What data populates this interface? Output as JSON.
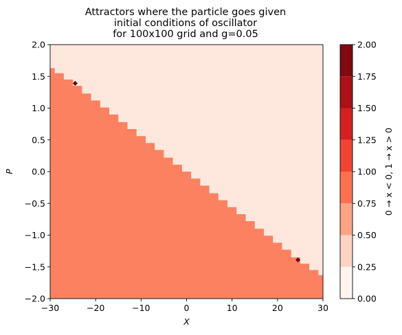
{
  "chart_data": {
    "type": "heatmap",
    "title": [
      "Attractors where the particle goes given",
      "initial conditions of oscillator",
      "for 100x100 grid and g=0.05"
    ],
    "xlabel": "X",
    "ylabel": "P",
    "xlim": [
      -30,
      30
    ],
    "ylim": [
      -2,
      2
    ],
    "x_ticks": [
      -30,
      -20,
      -10,
      0,
      10,
      20,
      30
    ],
    "y_ticks": [
      -2.0,
      -1.5,
      -1.0,
      -0.5,
      0.0,
      0.5,
      1.0,
      1.5,
      2.0
    ],
    "x_tick_labels": [
      "−30",
      "−20",
      "−10",
      "0",
      "10",
      "20",
      "30"
    ],
    "y_tick_labels": [
      "−2.0",
      "−1.5",
      "−1.0",
      "−0.5",
      "0.0",
      "0.5",
      "1.0",
      "1.5",
      "2.0"
    ],
    "regions": [
      {
        "value": 1,
        "color": "#fc8161",
        "side": "below",
        "desc": "below boundary"
      },
      {
        "value": 0,
        "color": "#fee8de",
        "side": "above",
        "desc": "above boundary"
      }
    ],
    "boundary": {
      "x": [
        -30,
        -28,
        -26,
        -24,
        -22,
        -20,
        -18,
        -16,
        -14,
        -12,
        -10,
        -8,
        -6,
        -4,
        -2,
        0,
        2,
        4,
        6,
        8,
        10,
        12,
        14,
        16,
        18,
        20,
        22,
        24,
        26,
        28,
        30
      ],
      "y": [
        1.63,
        1.55,
        1.45,
        1.35,
        1.23,
        1.12,
        1.01,
        0.9,
        0.78,
        0.67,
        0.56,
        0.45,
        0.34,
        0.22,
        0.11,
        0.0,
        -0.11,
        -0.22,
        -0.34,
        -0.45,
        -0.56,
        -0.67,
        -0.78,
        -0.9,
        -1.01,
        -1.12,
        -1.23,
        -1.35,
        -1.45,
        -1.55,
        -1.63
      ]
    },
    "special_points": [
      {
        "x": -24.5,
        "y": 1.39,
        "value": 2
      },
      {
        "x": 24.5,
        "y": -1.39,
        "value": 2
      }
    ],
    "colorbar": {
      "label": "0 → x < 0,  1 → x > 0",
      "levels": [
        0.0,
        0.25,
        0.5,
        0.75,
        1.0,
        1.25,
        1.5,
        1.75,
        2.0
      ],
      "tick_labels": [
        "0.00",
        "0.25",
        "0.50",
        "0.75",
        "1.00",
        "1.25",
        "1.50",
        "1.75",
        "2.00"
      ],
      "colors": [
        "#fff5f0",
        "#fdd4c2",
        "#fca486",
        "#fc7050",
        "#f14432",
        "#d42020",
        "#ad1016",
        "#800a12"
      ]
    },
    "grid": false
  }
}
